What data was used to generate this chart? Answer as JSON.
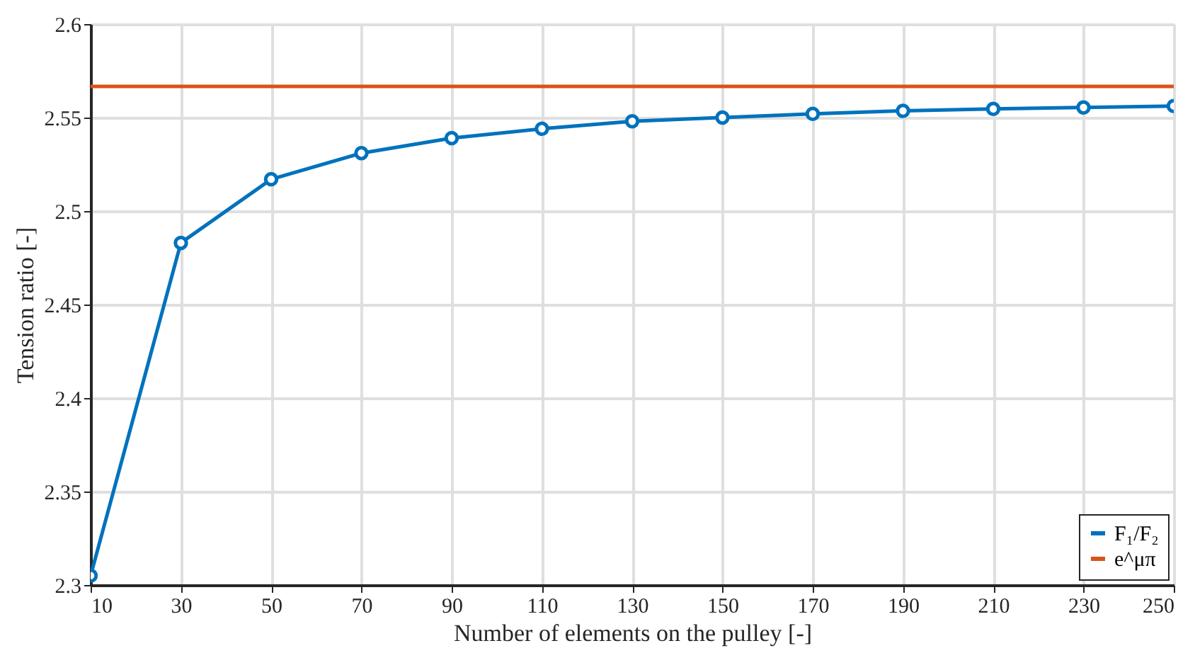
{
  "chart_data": {
    "type": "line",
    "xlabel": "Number of elements on the pulley [-]",
    "ylabel": "Tension ratio [-]",
    "x": [
      10,
      30,
      50,
      70,
      90,
      110,
      130,
      150,
      170,
      190,
      210,
      230,
      250
    ],
    "series": [
      {
        "name": "F₁/F₂",
        "color": "#0072bd",
        "marker": "circle",
        "values": [
          2.305,
          2.483,
          2.517,
          2.531,
          2.539,
          2.544,
          2.548,
          2.55,
          2.552,
          2.5536,
          2.5546,
          2.5554,
          2.5562
        ]
      },
      {
        "name": "e^μπ",
        "color": "#d95319",
        "type": "line",
        "x": [
          10,
          250
        ],
        "values": [
          2.5667,
          2.5667
        ]
      }
    ],
    "xlim": [
      10,
      250
    ],
    "xticks": [
      10,
      30,
      50,
      70,
      90,
      110,
      130,
      150,
      170,
      190,
      210,
      230,
      250
    ],
    "ylim": [
      2.3,
      2.6
    ],
    "yticks": [
      2.3,
      2.35,
      2.4,
      2.45,
      2.5,
      2.55,
      2.6
    ],
    "grid": true,
    "legend": "bottom right",
    "line_style": "solid"
  }
}
